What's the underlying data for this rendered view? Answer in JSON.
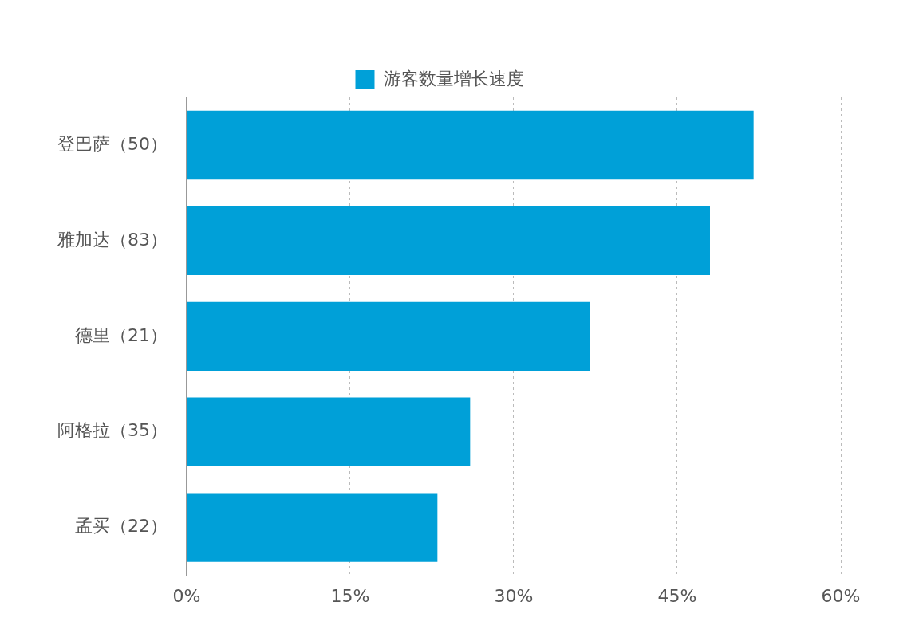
{
  "chart_data": {
    "type": "bar",
    "orientation": "horizontal",
    "legend": "top",
    "grid": "x",
    "categories": [
      "登巴萨（50）",
      "雅加达（83）",
      "德里（21）",
      "阿格拉（35）",
      "孟买（22）"
    ],
    "series": [
      {
        "name": "游客数量增长速度",
        "color": "#00a0d8",
        "values": [
          52,
          48,
          37,
          26,
          23
        ]
      }
    ],
    "xlim": [
      0,
      60
    ],
    "xticks": [
      {
        "value": 0,
        "label": "0%"
      },
      {
        "value": 15,
        "label": "15%"
      },
      {
        "value": 30,
        "label": "30%"
      },
      {
        "value": 45,
        "label": "45%"
      },
      {
        "value": 60,
        "label": "60%"
      }
    ]
  }
}
